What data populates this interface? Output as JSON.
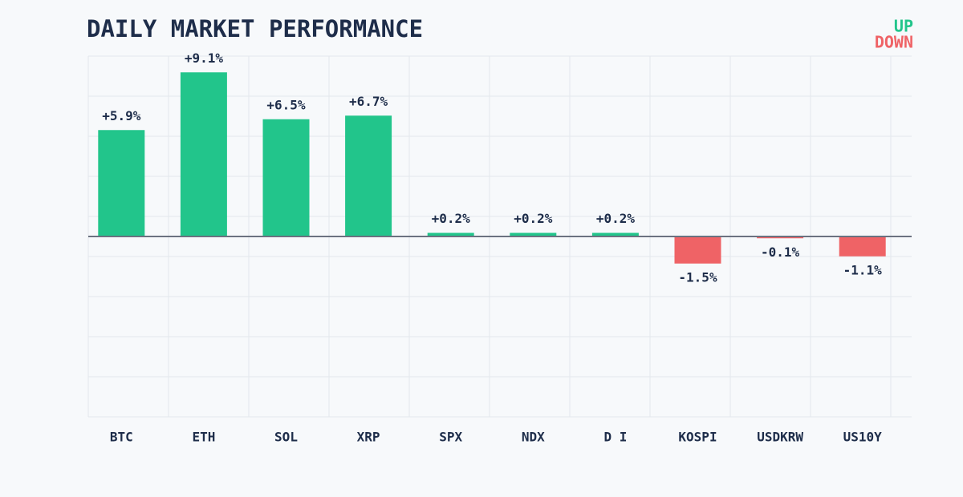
{
  "chart_data": {
    "type": "bar",
    "title": "DAILY MARKET PERFORMANCE",
    "categories": [
      "BTC",
      "ETH",
      "SOL",
      "XRP",
      "SPX",
      "NDX",
      "D I",
      "KOSPI",
      "USDKRW",
      "US10Y"
    ],
    "values": [
      5.9,
      9.1,
      6.5,
      6.7,
      0.2,
      0.2,
      0.2,
      -1.5,
      -0.1,
      -1.1
    ],
    "value_labels": [
      "+5.9%",
      "+9.1%",
      "+6.5%",
      "+6.7%",
      "+0.2%",
      "+0.2%",
      "+0.2%",
      "-1.5%",
      "-0.1%",
      "-1.1%"
    ],
    "ylim": [
      -10,
      10
    ],
    "legend": [
      {
        "name": "UP",
        "color": "#22c58b"
      },
      {
        "name": "DOWN",
        "color": "#ef6366"
      }
    ]
  }
}
